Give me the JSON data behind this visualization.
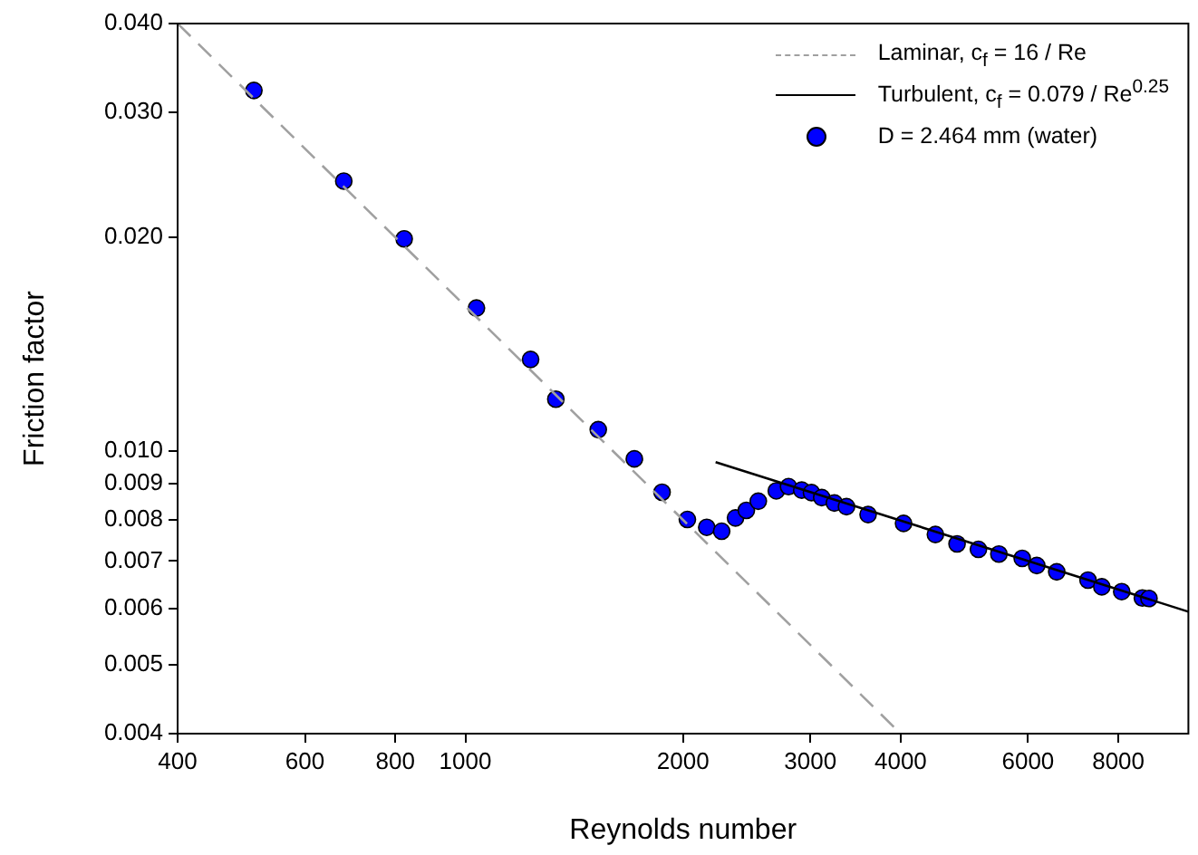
{
  "chart_data": {
    "type": "scatter",
    "xlabel": "Reynolds number",
    "ylabel": "Friction factor",
    "log": "xy",
    "grid": false,
    "legend": "top right",
    "xlim": [
      400,
      10000
    ],
    "ylim": [
      0.004,
      0.04
    ],
    "xticks": [
      400,
      600,
      800,
      1000,
      2000,
      3000,
      4000,
      6000,
      8000
    ],
    "yticks": [
      0.004,
      0.005,
      0.006,
      0.007,
      0.008,
      0.009,
      {
        "value": 0.01,
        "label": "0.010"
      },
      {
        "value": 0.02,
        "label": "0.020"
      },
      {
        "value": 0.03,
        "label": "0.030"
      },
      {
        "value": 0.04,
        "label": "0.040"
      }
    ],
    "series": [
      {
        "name": "Laminar, c$_{f}$ = 16 / Re",
        "type": "line",
        "color": "#a0a0a0",
        "line_style": "dashed",
        "marker": "none",
        "x": [
          400,
          4000
        ],
        "values": [
          0.04,
          0.004
        ]
      },
      {
        "name": "Turbulent, c$_{f}$ = 0.079 / Re$^{0.25}$",
        "type": "line",
        "color": "#000000",
        "line_style": "solid",
        "marker": "none",
        "x": [
          2219,
          10000
        ],
        "values": [
          0.00965,
          0.00594
        ]
      },
      {
        "name": "D = 2.464 mm (water)",
        "type": "scatter",
        "color": "#0000ff",
        "marker": "circle",
        "x": [
          510,
          679,
          823,
          1036,
          1231,
          1334,
          1527,
          1713,
          1871,
          2028,
          2157,
          2262,
          2364,
          2447,
          2542,
          2692,
          2799,
          2919,
          3011,
          3111,
          3239,
          3366,
          3606,
          4037,
          4468,
          4787,
          5124,
          5469,
          5891,
          6170,
          6575,
          7264,
          7590,
          8087,
          8637,
          8820
        ],
        "values": [
          0.0322,
          0.024,
          0.0199,
          0.0159,
          0.01346,
          0.01183,
          0.01072,
          0.00975,
          0.00875,
          0.00801,
          0.00781,
          0.00771,
          0.00805,
          0.00825,
          0.0085,
          0.00879,
          0.00891,
          0.00881,
          0.00874,
          0.0086,
          0.00845,
          0.00835,
          0.00814,
          0.00791,
          0.00763,
          0.0074,
          0.00727,
          0.00716,
          0.00706,
          0.0069,
          0.00676,
          0.00658,
          0.00644,
          0.00634,
          0.00621,
          0.0062
        ]
      }
    ]
  }
}
